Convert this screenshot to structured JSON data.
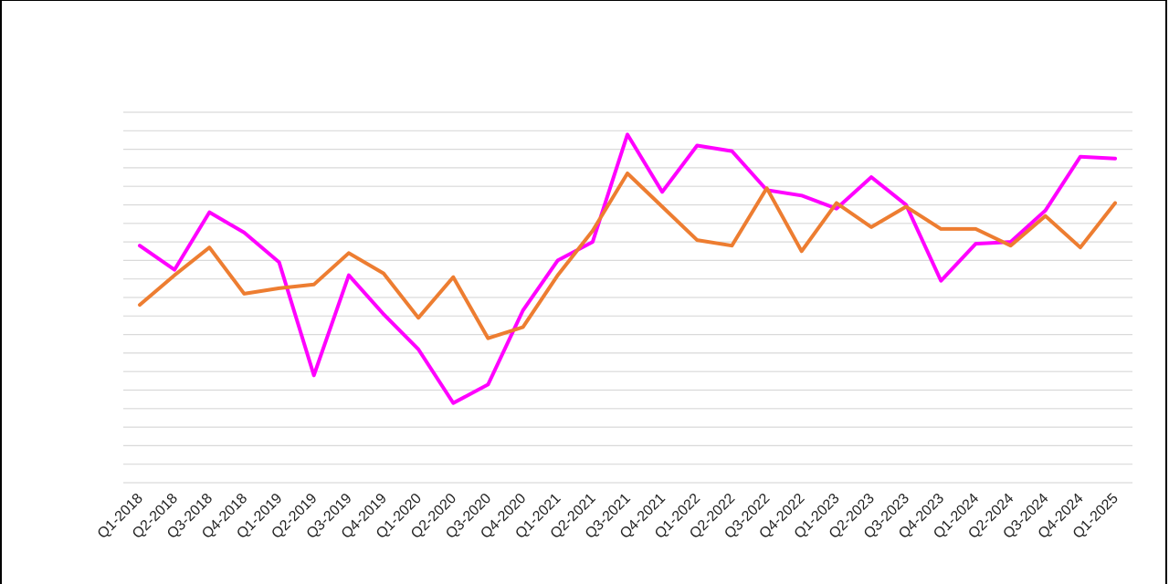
{
  "chart_data": {
    "type": "line",
    "title": "",
    "xlabel": "",
    "ylabel": "",
    "grid": true,
    "legend": "none",
    "ylim": [
      0,
      20
    ],
    "categories": [
      "Q1-2018",
      "Q2-2018",
      "Q3-2018",
      "Q4-2018",
      "Q1-2019",
      "Q2-2019",
      "Q3-2019",
      "Q4-2019",
      "Q1-2020",
      "Q2-2020",
      "Q3-2020",
      "Q4-2020",
      "Q1-2021",
      "Q2-2021",
      "Q3-2021",
      "Q4-2021",
      "Q1-2022",
      "Q2-2022",
      "Q3-2022",
      "Q4-2022",
      "Q1-2023",
      "Q2-2023",
      "Q3-2023",
      "Q4-2023",
      "Q1-2024",
      "Q2-2024",
      "Q3-2024",
      "Q4-2024",
      "Q1-2025"
    ],
    "series": [
      {
        "color": "#ff00ff",
        "values": [
          12.8,
          11.5,
          14.6,
          13.5,
          11.9,
          5.8,
          11.2,
          9.1,
          7.2,
          4.3,
          5.3,
          9.3,
          12.0,
          13.0,
          18.8,
          15.7,
          18.2,
          17.9,
          15.8,
          15.5,
          14.8,
          16.5,
          15.0,
          10.9,
          12.9,
          13.0,
          14.7,
          17.6,
          17.5
        ]
      },
      {
        "color": "#ed7d31",
        "values": [
          9.6,
          11.2,
          12.7,
          10.2,
          10.5,
          10.7,
          12.4,
          11.3,
          8.9,
          11.1,
          7.8,
          8.4,
          11.2,
          13.6,
          16.7,
          14.9,
          13.1,
          12.8,
          15.9,
          12.5,
          15.1,
          13.8,
          14.9,
          13.7,
          13.7,
          12.8,
          14.4,
          12.7,
          15.1
        ]
      }
    ]
  }
}
